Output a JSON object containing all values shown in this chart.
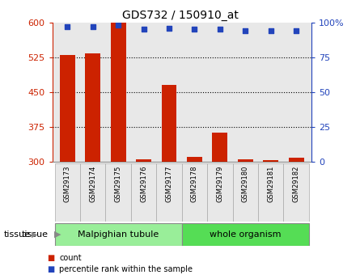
{
  "title": "GDS732 / 150910_at",
  "samples": [
    "GSM29173",
    "GSM29174",
    "GSM29175",
    "GSM29176",
    "GSM29177",
    "GSM29178",
    "GSM29179",
    "GSM29180",
    "GSM29181",
    "GSM29182"
  ],
  "counts": [
    530,
    533,
    601,
    305,
    465,
    310,
    362,
    305,
    304,
    308
  ],
  "percentiles": [
    97,
    97,
    98,
    95,
    96,
    95,
    95,
    94,
    94,
    94
  ],
  "groups": [
    {
      "label": "Malpighian tubule",
      "start": 0,
      "end": 5,
      "color": "#99ee99"
    },
    {
      "label": "whole organism",
      "start": 5,
      "end": 10,
      "color": "#55dd55"
    }
  ],
  "ylim_left": [
    300,
    600
  ],
  "ylim_right": [
    0,
    100
  ],
  "yticks_left": [
    300,
    375,
    450,
    525,
    600
  ],
  "yticks_right": [
    0,
    25,
    50,
    75,
    100
  ],
  "bar_color": "#cc2200",
  "dot_color": "#2244bb",
  "grid_color": "#888888",
  "bg_color": "#e8e8e8",
  "tissue_label": "tissue",
  "legend_count": "count",
  "legend_percentile": "percentile rank within the sample",
  "fig_bg": "#ffffff"
}
